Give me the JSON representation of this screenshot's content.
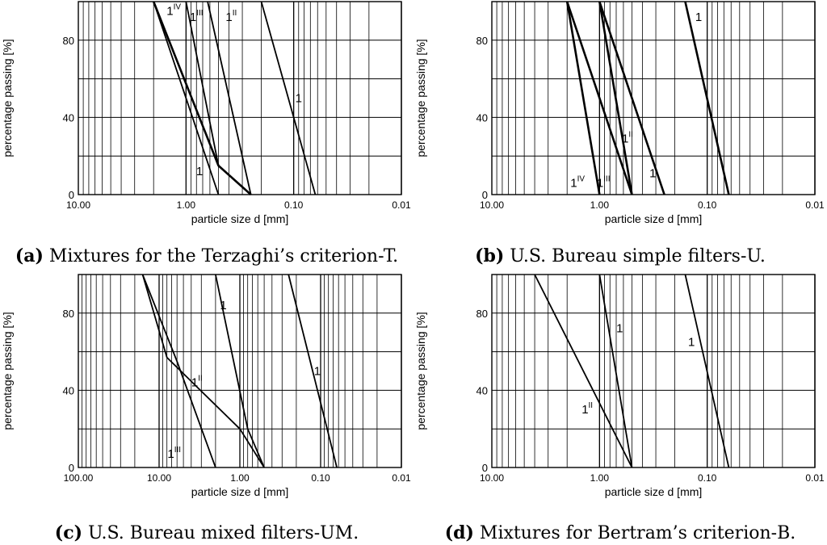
{
  "chart_data": [
    {
      "id": "a",
      "type": "line",
      "x_scale": "log",
      "x_reversed": true,
      "xlim": [
        10,
        0.01
      ],
      "ylim": [
        0,
        100
      ],
      "x_ticks": [
        "10.00",
        "1.00",
        "0.10",
        "0.01"
      ],
      "y_ticks": [
        "0",
        "40",
        "80"
      ],
      "xlabel": "particle size d [mm]",
      "ylabel": "percentage passing [%]",
      "caption_letter": "(a)",
      "caption_text": " Mixtures for the Terzaghi’s criterion-T.",
      "series": [
        {
          "label": "1",
          "sup": "",
          "bold": false,
          "points": [
            [
              0.2,
              100
            ],
            [
              0.063,
              0
            ]
          ]
        },
        {
          "label": "1",
          "sup": "IV",
          "bold": true,
          "points": [
            [
              2.0,
              100
            ],
            [
              0.5,
              15
            ],
            [
              0.25,
              0
            ]
          ]
        },
        {
          "label": "1",
          "sup": "",
          "bold": false,
          "points": [
            [
              2.0,
              100
            ],
            [
              0.5,
              0
            ]
          ]
        },
        {
          "label": "1",
          "sup": "III",
          "bold": false,
          "points": [
            [
              1.0,
              100
            ],
            [
              0.5,
              15
            ],
            [
              0.25,
              0
            ]
          ]
        },
        {
          "label": "1",
          "sup": "II",
          "bold": false,
          "points": [
            [
              0.63,
              100
            ],
            [
              0.25,
              0
            ]
          ]
        }
      ],
      "annotations": [
        {
          "text": "1",
          "sup": "IV",
          "x": 1.3,
          "y": 93
        },
        {
          "text": "1",
          "sup": "III",
          "x": 0.8,
          "y": 90
        },
        {
          "text": "1",
          "sup": "II",
          "x": 0.38,
          "y": 90
        },
        {
          "text": "1",
          "sup": "",
          "x": 0.09,
          "y": 48
        },
        {
          "text": "1",
          "sup": "",
          "x": 0.75,
          "y": 10
        }
      ]
    },
    {
      "id": "b",
      "type": "line",
      "x_scale": "log",
      "x_reversed": true,
      "xlim": [
        10,
        0.01
      ],
      "ylim": [
        0,
        100
      ],
      "x_ticks": [
        "10.00",
        "1.00",
        "0.10",
        "0.01"
      ],
      "y_ticks": [
        "0",
        "40",
        "80"
      ],
      "xlabel": "particle size d [mm]",
      "ylabel": "percentage passing [%]",
      "caption_letter": "(b)",
      "caption_text": " U.S. Bureau simple filters-U.",
      "series": [
        {
          "label": "1",
          "sup": "",
          "bold": true,
          "points": [
            [
              0.16,
              100
            ],
            [
              0.063,
              0
            ]
          ]
        },
        {
          "label": "1",
          "sup": "",
          "bold": true,
          "points": [
            [
              1.0,
              100
            ],
            [
              0.25,
              0
            ]
          ]
        },
        {
          "label": "1",
          "sup": "II",
          "bold": true,
          "points": [
            [
              1.0,
              100
            ],
            [
              0.5,
              0
            ]
          ]
        },
        {
          "label": "1",
          "sup": "III",
          "bold": true,
          "points": [
            [
              2.0,
              100
            ],
            [
              0.5,
              0
            ]
          ]
        },
        {
          "label": "1",
          "sup": "IV",
          "bold": true,
          "points": [
            [
              2.0,
              100
            ],
            [
              1.0,
              0
            ]
          ]
        }
      ],
      "annotations": [
        {
          "text": "1",
          "sup": "",
          "x": 0.12,
          "y": 90
        },
        {
          "text": "1",
          "sup": "II",
          "x": 0.55,
          "y": 27
        },
        {
          "text": "1",
          "sup": "IV",
          "x": 1.6,
          "y": 4
        },
        {
          "text": "1",
          "sup": "III",
          "x": 0.92,
          "y": 4
        },
        {
          "text": "1",
          "sup": "",
          "x": 0.32,
          "y": 9
        }
      ]
    },
    {
      "id": "c",
      "type": "line",
      "x_scale": "log",
      "x_reversed": true,
      "xlim": [
        100,
        0.01
      ],
      "ylim": [
        0,
        100
      ],
      "x_ticks": [
        "100.00",
        "10.00",
        "1.00",
        "0.10",
        "0.01"
      ],
      "y_ticks": [
        "0",
        "40",
        "80"
      ],
      "xlabel": "particle size d [mm]",
      "ylabel": "percentage passing [%]",
      "caption_letter": "(c)",
      "caption_text": " U.S. Bureau mixed filters-UM.",
      "series": [
        {
          "label": "1",
          "sup": "",
          "bold": false,
          "points": [
            [
              0.25,
              100
            ],
            [
              0.063,
              0
            ]
          ]
        },
        {
          "label": "1",
          "sup": "",
          "bold": false,
          "points": [
            [
              2.0,
              100
            ],
            [
              0.8,
              20
            ],
            [
              0.5,
              0
            ]
          ]
        },
        {
          "label": "1",
          "sup": "II",
          "bold": false,
          "points": [
            [
              16,
              100
            ],
            [
              8,
              57
            ],
            [
              1.0,
              20
            ],
            [
              0.5,
              0
            ]
          ]
        },
        {
          "label": "1",
          "sup": "III",
          "bold": false,
          "points": [
            [
              16,
              100
            ],
            [
              6,
              55
            ],
            [
              2.0,
              0
            ]
          ]
        }
      ],
      "annotations": [
        {
          "text": "1",
          "sup": "",
          "x": 1.6,
          "y": 82
        },
        {
          "text": "1",
          "sup": "II",
          "x": 3.4,
          "y": 42
        },
        {
          "text": "1",
          "sup": "",
          "x": 0.11,
          "y": 48
        },
        {
          "text": "1",
          "sup": "III",
          "x": 6.5,
          "y": 5
        }
      ]
    },
    {
      "id": "d",
      "type": "line",
      "x_scale": "log",
      "x_reversed": true,
      "xlim": [
        10,
        0.01
      ],
      "ylim": [
        0,
        100
      ],
      "x_ticks": [
        "10.00",
        "1.00",
        "0.10",
        "0.01"
      ],
      "y_ticks": [
        "0",
        "40",
        "80"
      ],
      "xlabel": "particle size d [mm]",
      "ylabel": "percentage passing [%]",
      "caption_letter": "(d)",
      "caption_text": " Mixtures for Bertram’s criterion-B.",
      "series": [
        {
          "label": "1",
          "sup": "",
          "bold": false,
          "points": [
            [
              0.16,
              100
            ],
            [
              0.063,
              0
            ]
          ]
        },
        {
          "label": "1",
          "sup": "",
          "bold": false,
          "points": [
            [
              1.0,
              100
            ],
            [
              0.5,
              0
            ]
          ]
        },
        {
          "label": "1",
          "sup": "II",
          "bold": false,
          "points": [
            [
              4.0,
              100
            ],
            [
              0.5,
              0
            ]
          ]
        }
      ],
      "annotations": [
        {
          "text": "1",
          "sup": "",
          "x": 0.65,
          "y": 70
        },
        {
          "text": "1",
          "sup": "",
          "x": 0.14,
          "y": 63
        },
        {
          "text": "1",
          "sup": "II",
          "x": 1.3,
          "y": 28
        }
      ]
    }
  ]
}
